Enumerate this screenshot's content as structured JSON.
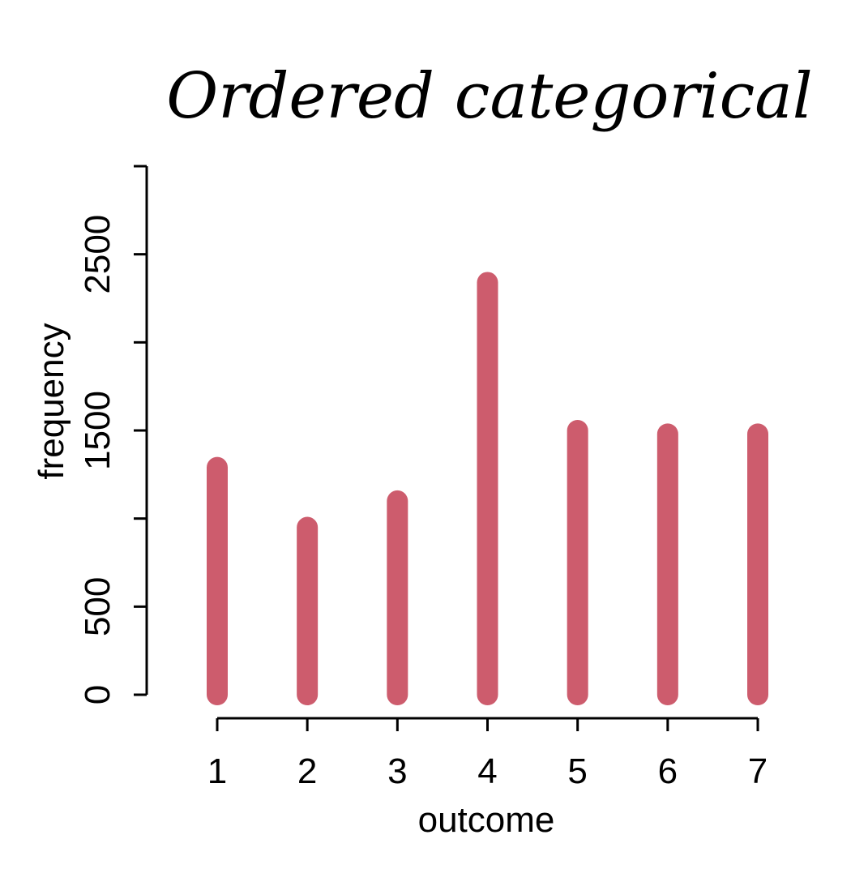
{
  "chart_data": {
    "type": "bar",
    "title": "Ordered categorical",
    "xlabel": "outcome",
    "ylabel": "frequency",
    "categories": [
      "1",
      "2",
      "3",
      "4",
      "5",
      "6",
      "7"
    ],
    "values": [
      1290,
      950,
      1100,
      2340,
      1500,
      1480,
      1480
    ],
    "ylim": [
      0,
      3000
    ],
    "yticks": [
      0,
      500,
      1000,
      1500,
      2000,
      2500,
      3000
    ],
    "yticks_labeled": [
      "0",
      "500",
      "1500",
      "2500"
    ],
    "bar_color": "#cd5c6d",
    "grid": false,
    "legend": "none"
  }
}
